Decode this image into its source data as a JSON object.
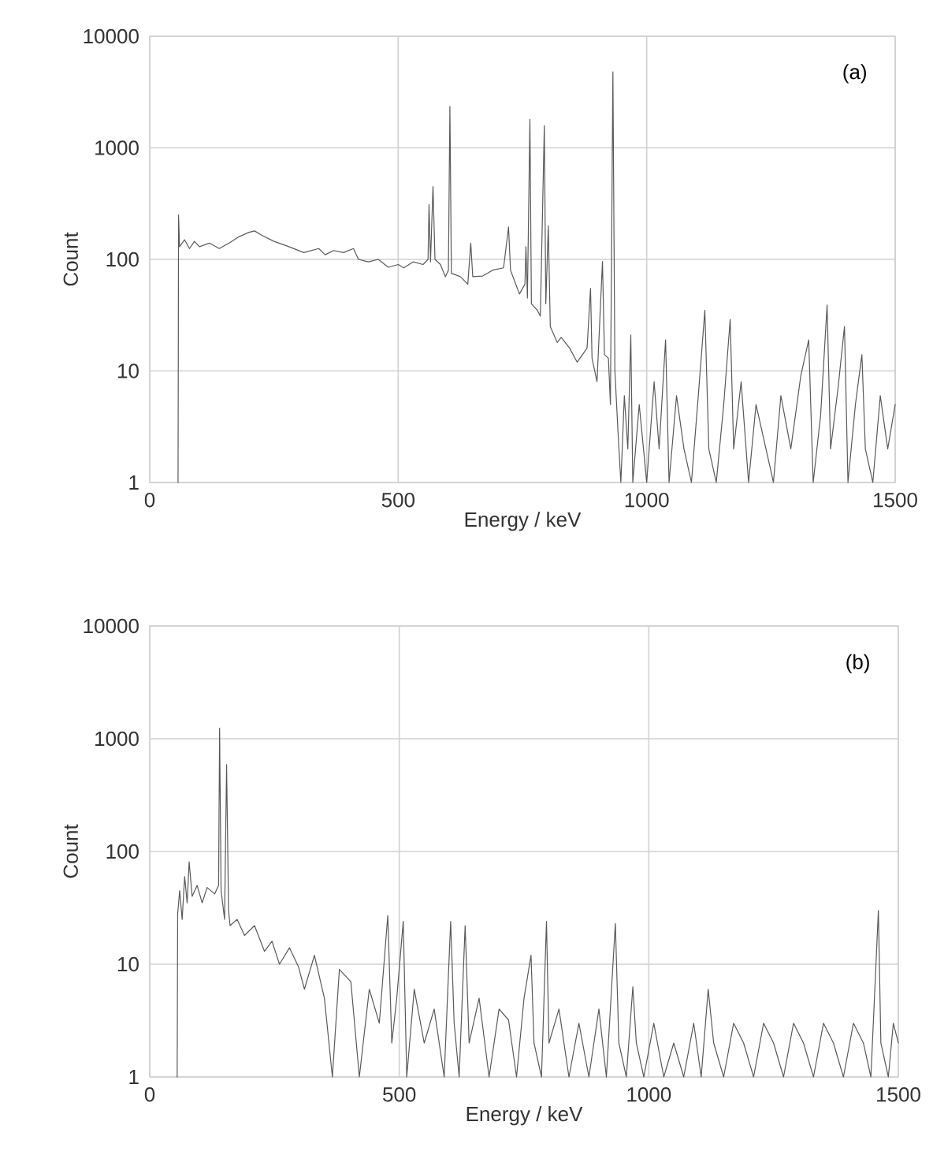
{
  "chart_data": [
    {
      "type": "line",
      "xlabel": "Energy / keV",
      "ylabel": "Count",
      "annotations": [
        "(a)"
      ],
      "color": "#595959",
      "log": "y",
      "grid": true,
      "xlim": [
        0,
        1500
      ],
      "ylim": [
        1,
        10000
      ],
      "xticks": [
        0,
        500,
        1000,
        1500
      ],
      "yticks": [
        1,
        10,
        100,
        1000,
        10000
      ],
      "x": [
        57,
        58,
        60,
        70,
        80,
        90,
        100,
        120,
        140,
        160,
        180,
        200,
        211,
        225,
        250,
        280,
        310,
        340,
        353,
        370,
        390,
        410,
        420,
        440,
        460,
        480,
        500,
        511,
        530,
        550,
        560,
        562,
        565,
        570,
        574,
        585,
        595,
        601,
        604,
        607,
        625,
        640,
        646,
        650,
        670,
        690,
        712,
        722,
        726,
        744,
        755,
        757,
        760,
        765,
        768,
        780,
        786,
        794,
        797,
        802,
        806,
        820,
        828,
        845,
        860,
        880,
        887,
        890,
        900,
        911,
        915,
        923,
        927,
        932,
        936,
        942,
        948,
        955,
        962,
        968,
        972,
        985,
        1000,
        1015,
        1025,
        1038,
        1045,
        1060,
        1075,
        1090,
        1105,
        1117,
        1125,
        1140,
        1155,
        1168,
        1175,
        1190,
        1205,
        1220,
        1240,
        1255,
        1270,
        1290,
        1310,
        1326,
        1335,
        1350,
        1363,
        1370,
        1385,
        1398,
        1405,
        1420,
        1433,
        1440,
        1455,
        1470,
        1485,
        1500
      ],
      "values": [
        1,
        250,
        130,
        150,
        125,
        145,
        130,
        140,
        125,
        140,
        160,
        175,
        180,
        165,
        145,
        130,
        115,
        125,
        110,
        120,
        115,
        125,
        100,
        95,
        100,
        85,
        90,
        84,
        95,
        90,
        100,
        310,
        95,
        450,
        100,
        90,
        70,
        80,
        2350,
        75,
        70,
        60,
        140,
        70,
        71,
        80,
        84,
        195,
        80,
        49,
        60,
        130,
        45,
        1800,
        40,
        35,
        31,
        1580,
        40,
        200,
        25,
        18,
        20,
        16,
        12,
        16,
        55,
        13,
        8,
        96,
        14,
        13,
        5,
        4800,
        10,
        3,
        1,
        6,
        2,
        21,
        1,
        5,
        1,
        8,
        2,
        19,
        1,
        6,
        2,
        1,
        7,
        35,
        2,
        1,
        5,
        29,
        2,
        8,
        1,
        5,
        2,
        1,
        6,
        2,
        9,
        19,
        1,
        4,
        39,
        2,
        7,
        25,
        1,
        5,
        14,
        2,
        1,
        6,
        2,
        5
      ]
    },
    {
      "type": "line",
      "xlabel": "Energy / keV",
      "ylabel": "Count",
      "annotations": [
        "(b)"
      ],
      "color": "#595959",
      "log": "y",
      "grid": true,
      "xlim": [
        0,
        1500
      ],
      "ylim": [
        1,
        10000
      ],
      "xticks": [
        0,
        500,
        1000,
        1500
      ],
      "yticks": [
        1,
        10,
        100,
        1000,
        10000
      ],
      "x": [
        55,
        56,
        60,
        65,
        70,
        75,
        79,
        85,
        95,
        105,
        115,
        130,
        138,
        140,
        143,
        150,
        154,
        158,
        161,
        175,
        190,
        210,
        230,
        245,
        260,
        280,
        298,
        310,
        330,
        350,
        366,
        380,
        403,
        420,
        440,
        460,
        477,
        485,
        495,
        508,
        515,
        530,
        550,
        570,
        590,
        603,
        610,
        620,
        632,
        640,
        660,
        680,
        700,
        719,
        735,
        750,
        764,
        770,
        785,
        795,
        800,
        820,
        840,
        860,
        880,
        900,
        915,
        933,
        940,
        955,
        968,
        975,
        990,
        1010,
        1030,
        1050,
        1070,
        1090,
        1105,
        1119,
        1130,
        1150,
        1170,
        1190,
        1210,
        1230,
        1250,
        1270,
        1290,
        1310,
        1330,
        1350,
        1370,
        1390,
        1410,
        1430,
        1445,
        1460,
        1465,
        1480,
        1490,
        1500
      ],
      "values": [
        1,
        28,
        45,
        25,
        60,
        35,
        81,
        40,
        50,
        35,
        48,
        42,
        50,
        1240,
        45,
        25,
        590,
        30,
        22,
        25,
        18,
        22,
        13,
        16,
        10,
        14,
        9.5,
        6,
        12,
        5,
        1,
        9,
        7,
        1,
        6,
        3,
        27,
        2,
        5,
        24,
        1,
        6,
        2,
        4,
        1,
        24,
        3,
        1,
        22,
        2,
        5,
        1,
        4,
        3.2,
        1,
        5,
        12,
        2,
        1,
        24,
        2,
        4,
        1,
        3,
        1,
        4,
        1,
        23,
        2,
        1,
        6.3,
        2,
        1,
        3,
        1,
        2,
        1,
        3,
        1,
        6,
        2,
        1,
        3,
        2,
        1,
        3,
        2,
        1,
        3,
        2,
        1,
        3,
        2,
        1,
        3,
        2,
        1,
        30,
        2,
        1,
        3,
        2
      ]
    }
  ]
}
